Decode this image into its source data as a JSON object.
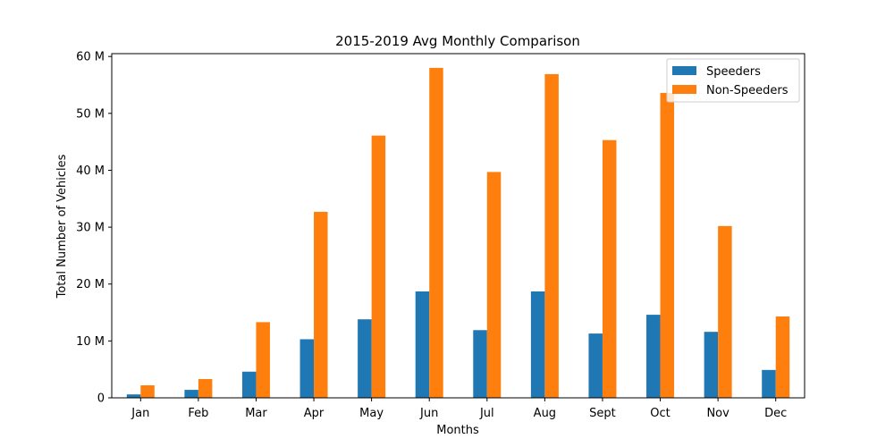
{
  "chart_data": {
    "type": "bar",
    "title": "2015-2019 Avg Monthly Comparison",
    "xlabel": "Months",
    "ylabel": "Total Number of Vehicles",
    "categories": [
      "Jan",
      "Feb",
      "Mar",
      "Apr",
      "May",
      "Jun",
      "Jul",
      "Aug",
      "Sept",
      "Oct",
      "Nov",
      "Dec"
    ],
    "series": [
      {
        "name": "Speeders",
        "color": "#1f77b4",
        "values": [
          0.6,
          1.4,
          4.6,
          10.3,
          13.8,
          18.7,
          11.9,
          18.7,
          11.3,
          14.6,
          11.6,
          4.9
        ]
      },
      {
        "name": "Non-Speeders",
        "color": "#ff7f0e",
        "values": [
          2.2,
          3.3,
          13.3,
          32.7,
          46.1,
          58.0,
          39.7,
          56.9,
          45.3,
          53.6,
          30.2,
          14.3
        ]
      }
    ],
    "ylim": [
      0,
      60.5
    ],
    "yticks": [
      0,
      10,
      20,
      30,
      40,
      50,
      60
    ],
    "ytick_labels": [
      "0",
      "10 M",
      "20 M",
      "30 M",
      "40 M",
      "50 M",
      "60 M"
    ],
    "grid": false,
    "legend_position": "top-right"
  }
}
